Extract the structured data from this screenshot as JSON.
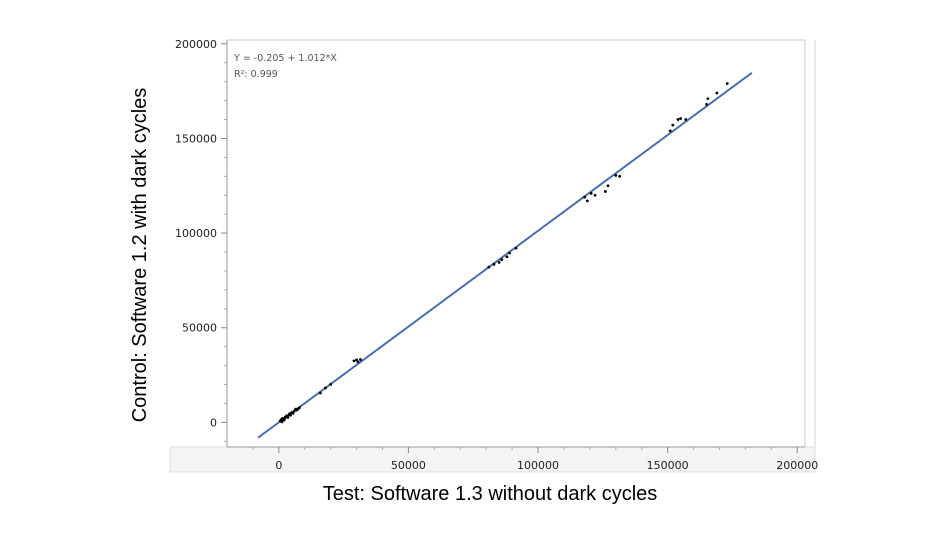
{
  "chart_data": {
    "type": "scatter",
    "xlabel": "Test: Software 1.3 without dark cycles",
    "ylabel": "Control: Software 1.2 with dark cycles",
    "xlim": [
      -20000,
      203000
    ],
    "ylim": [
      -13000,
      202000
    ],
    "xticks": [
      0,
      50000,
      100000,
      150000,
      200000
    ],
    "yticks": [
      0,
      50000,
      100000,
      150000,
      200000
    ],
    "annotations": [
      "Y = -0.205 + 1.012*X",
      "R²: 0.999"
    ],
    "regression": {
      "intercept": -0.205,
      "slope": 1.012,
      "x_range": [
        -8000,
        182500
      ]
    },
    "colors": {
      "line": "#4a6fae",
      "points": "#000000",
      "frame": "#c8c8c8"
    },
    "points": [
      [
        500,
        800
      ],
      [
        1000,
        1500
      ],
      [
        1500,
        2200
      ],
      [
        2000,
        1200
      ],
      [
        2500,
        2800
      ],
      [
        3000,
        3500
      ],
      [
        3500,
        2600
      ],
      [
        4000,
        4200
      ],
      [
        4500,
        3800
      ],
      [
        5000,
        5200
      ],
      [
        5500,
        4800
      ],
      [
        6000,
        6100
      ],
      [
        6500,
        7000
      ],
      [
        7000,
        6500
      ],
      [
        7500,
        7300
      ],
      [
        8000,
        7800
      ],
      [
        1200,
        300
      ],
      [
        2200,
        1900
      ],
      [
        3300,
        3100
      ],
      [
        4200,
        4600
      ],
      [
        16000,
        15500
      ],
      [
        18000,
        18200
      ],
      [
        20000,
        20100
      ],
      [
        29000,
        32500
      ],
      [
        30000,
        33000
      ],
      [
        30500,
        32000
      ],
      [
        31500,
        33200
      ],
      [
        81000,
        82000
      ],
      [
        83000,
        83500
      ],
      [
        85000,
        84500
      ],
      [
        86000,
        86000
      ],
      [
        88000,
        87500
      ],
      [
        89000,
        89500
      ],
      [
        91500,
        92000
      ],
      [
        118000,
        119000
      ],
      [
        119000,
        117000
      ],
      [
        120500,
        121000
      ],
      [
        122000,
        120000
      ],
      [
        126000,
        122000
      ],
      [
        127000,
        125000
      ],
      [
        130000,
        130500
      ],
      [
        131500,
        130000
      ],
      [
        151000,
        154000
      ],
      [
        152000,
        157000
      ],
      [
        154000,
        160000
      ],
      [
        155000,
        160500
      ],
      [
        157000,
        160000
      ],
      [
        165000,
        168000
      ],
      [
        165500,
        171000
      ],
      [
        169000,
        174000
      ],
      [
        173000,
        179000
      ]
    ]
  }
}
